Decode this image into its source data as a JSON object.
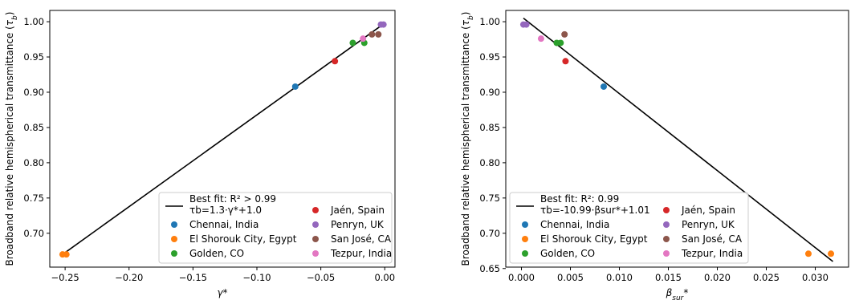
{
  "chart_data": [
    {
      "type": "scatter",
      "xlabel": "γ*",
      "ylabel": "Broadband relative hemispherical transmittance (τb)",
      "xlim": [
        -0.262,
        0.008
      ],
      "ylim": [
        0.652,
        1.016
      ],
      "xticks": [
        -0.25,
        -0.2,
        -0.15,
        -0.1,
        -0.05,
        0.0
      ],
      "xtick_labels": [
        "−0.25",
        "−0.20",
        "−0.15",
        "−0.10",
        "−0.05",
        "0.00"
      ],
      "yticks": [
        0.7,
        0.75,
        0.8,
        0.85,
        0.9,
        0.95,
        1.0
      ],
      "ytick_labels": [
        "0.70",
        "0.75",
        "0.80",
        "0.85",
        "0.90",
        "0.95",
        "1.00"
      ],
      "fit": {
        "label_line1": "Best fit: R² > 0.99",
        "label_line2": "τb=1.3·γ*+1.0",
        "x": [
          -0.252,
          0.0
        ],
        "y": [
          0.67,
          0.998
        ],
        "color": "#000000"
      },
      "legend_position": "lower-right",
      "series": [
        {
          "name": "Chennai, India",
          "color": "#1f77b4",
          "points": [
            [
              -0.07,
              0.908
            ]
          ]
        },
        {
          "name": "El Shorouk City, Egypt",
          "color": "#ff7f0e",
          "points": [
            [
              -0.252,
              0.67
            ],
            [
              -0.249,
              0.67
            ]
          ]
        },
        {
          "name": "Golden, CO",
          "color": "#2ca02c",
          "points": [
            [
              -0.025,
              0.97
            ],
            [
              -0.016,
              0.97
            ]
          ]
        },
        {
          "name": "Jaén, Spain",
          "color": "#d62728",
          "points": [
            [
              -0.039,
              0.944
            ]
          ]
        },
        {
          "name": "Penryn, UK",
          "color": "#9467bd",
          "points": [
            [
              -0.003,
              0.996
            ],
            [
              -0.001,
              0.996
            ]
          ]
        },
        {
          "name": "San José, CA",
          "color": "#8c564b",
          "points": [
            [
              -0.01,
              0.982
            ],
            [
              -0.005,
              0.982
            ]
          ]
        },
        {
          "name": "Tezpur, India",
          "color": "#e377c2",
          "points": [
            [
              -0.017,
              0.976
            ]
          ]
        }
      ]
    },
    {
      "type": "scatter",
      "xlabel": "βsur*",
      "ylabel": "Broadband relative hemispherical transmittance (τb)",
      "xlim": [
        -0.0016,
        0.0334
      ],
      "ylim": [
        0.652,
        1.016
      ],
      "xticks": [
        0.0,
        0.005,
        0.01,
        0.015,
        0.02,
        0.025,
        0.03
      ],
      "xtick_labels": [
        "0.000",
        "0.005",
        "0.010",
        "0.015",
        "0.020",
        "0.025",
        "0.030"
      ],
      "yticks": [
        0.65,
        0.7,
        0.75,
        0.8,
        0.85,
        0.9,
        0.95,
        1.0
      ],
      "ytick_labels": [
        "0.65",
        "0.70",
        "0.75",
        "0.80",
        "0.85",
        "0.90",
        "0.95",
        "1.00"
      ],
      "fit": {
        "label_line1": "Best fit: R²: 0.99",
        "label_line2": "τb=-10.99·βsur*+1.01",
        "x": [
          0.0002,
          0.0318
        ],
        "y": [
          1.005,
          0.66
        ],
        "color": "#000000"
      },
      "legend_position": "lower-left",
      "series": [
        {
          "name": "Chennai, India",
          "color": "#1f77b4",
          "points": [
            [
              0.0084,
              0.908
            ]
          ]
        },
        {
          "name": "El Shorouk City, Egypt",
          "color": "#ff7f0e",
          "points": [
            [
              0.0293,
              0.671
            ],
            [
              0.0316,
              0.671
            ]
          ]
        },
        {
          "name": "Golden, CO",
          "color": "#2ca02c",
          "points": [
            [
              0.0036,
              0.97
            ],
            [
              0.004,
              0.97
            ]
          ]
        },
        {
          "name": "Jaén, Spain",
          "color": "#d62728",
          "points": [
            [
              0.0045,
              0.944
            ]
          ]
        },
        {
          "name": "Penryn, UK",
          "color": "#9467bd",
          "points": [
            [
              0.0002,
              0.996
            ],
            [
              0.0005,
              0.996
            ]
          ]
        },
        {
          "name": "San José, CA",
          "color": "#8c564b",
          "points": [
            [
              0.0044,
              0.982
            ]
          ]
        },
        {
          "name": "Tezpur, India",
          "color": "#e377c2",
          "points": [
            [
              0.002,
              0.976
            ]
          ]
        }
      ]
    }
  ]
}
